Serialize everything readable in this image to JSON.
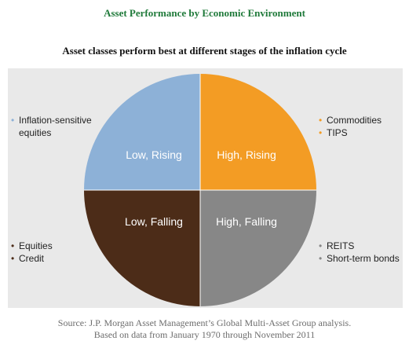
{
  "title": "Asset Performance by Economic Environment",
  "subtitle": "Asset classes perform best at different stages of the inflation cycle",
  "quadrants": [
    {
      "label": "Low, Rising",
      "color": "#8db1d7"
    },
    {
      "label": "High, Rising",
      "color": "#f39c24"
    },
    {
      "label": "Low, Falling",
      "color": "#4c2c18"
    },
    {
      "label": "High, Falling",
      "color": "#878787"
    }
  ],
  "side_lists": {
    "top_left": {
      "dot_color": "#8db1d7",
      "items": [
        "Inflation-sensitive",
        "equities"
      ]
    },
    "top_right": {
      "dot_color": "#f39c24",
      "items": [
        "Commodities",
        "TIPS"
      ]
    },
    "bottom_left": {
      "dot_color": "#4c2c18",
      "items": [
        "Equities",
        "Credit"
      ]
    },
    "bottom_right": {
      "dot_color": "#878787",
      "items": [
        "REITS",
        "Short-term bonds"
      ]
    }
  },
  "source": {
    "line1": "Source: J.P. Morgan Asset Management’s Global Multi-Asset Group analysis.",
    "line2": "Based on data from January 1970 through November 2011"
  }
}
